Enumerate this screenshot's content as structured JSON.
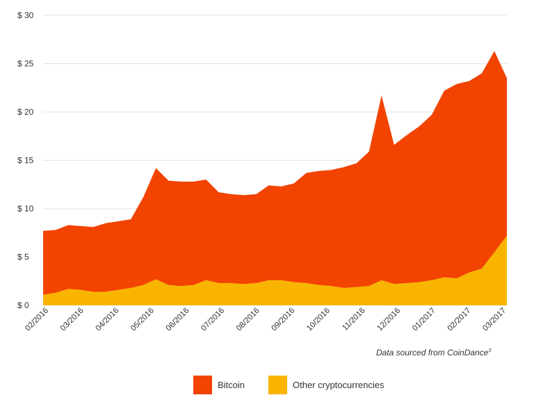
{
  "chart_data": {
    "type": "area",
    "stacked": true,
    "title": "",
    "xlabel": "",
    "ylabel": "",
    "ylim": [
      0,
      30
    ],
    "y_ticks": [
      "$ 0",
      "$ 5",
      "$ 10",
      "$ 15",
      "$ 20",
      "$ 25",
      "$ 30"
    ],
    "x_ticks": [
      "02/2016",
      "03/2016",
      "04/2016",
      "05/2016",
      "06/2016",
      "07/2016",
      "08/2016",
      "09/2016",
      "10/2016",
      "11/2016",
      "12/2016",
      "01/2017",
      "02/2017",
      "03/2017"
    ],
    "grid": true,
    "legend_position": "bottom-center",
    "x": [
      "02/2016",
      "02/2016",
      "03/2016",
      "03/2016",
      "04/2016",
      "04/2016",
      "05/2016",
      "05/2016",
      "05/2016",
      "06/2016",
      "06/2016",
      "06/2016",
      "06/2016",
      "07/2016",
      "07/2016",
      "07/2016",
      "08/2016",
      "08/2016",
      "09/2016",
      "09/2016",
      "10/2016",
      "10/2016",
      "11/2016",
      "11/2016",
      "12/2016",
      "12/2016",
      "12/2016",
      "12/2016",
      "01/2017",
      "01/2017",
      "01/2017",
      "02/2017",
      "02/2017",
      "02/2017",
      "03/2017",
      "03/2017",
      "03/2017",
      "03/2017"
    ],
    "series": [
      {
        "name": "Other cryptocurrencies",
        "color": "#F9B400",
        "values": [
          1.1,
          1.3,
          1.7,
          1.6,
          1.4,
          1.4,
          1.6,
          1.8,
          2.1,
          2.7,
          2.1,
          2.0,
          2.1,
          2.6,
          2.3,
          2.3,
          2.2,
          2.3,
          2.6,
          2.6,
          2.4,
          2.3,
          2.1,
          2.0,
          1.8,
          1.9,
          2.0,
          2.6,
          2.2,
          2.3,
          2.4,
          2.6,
          2.9,
          2.8,
          3.4,
          3.8,
          5.5,
          7.2
        ]
      },
      {
        "name": "Bitcoin",
        "color": "#F24300",
        "values": [
          6.6,
          6.5,
          6.6,
          6.6,
          6.7,
          7.1,
          7.1,
          7.1,
          9.1,
          11.5,
          10.8,
          10.8,
          10.7,
          10.4,
          9.4,
          9.2,
          9.2,
          9.2,
          9.8,
          9.7,
          10.2,
          11.4,
          11.8,
          12.0,
          12.5,
          12.8,
          13.9,
          19.1,
          14.4,
          15.3,
          16.1,
          17.1,
          19.3,
          20.1,
          19.8,
          20.2,
          20.8,
          16.3
        ]
      }
    ]
  },
  "source": {
    "text": "Data sourced from CoinDance",
    "superscript": "3"
  },
  "legend": [
    {
      "label": "Bitcoin",
      "color": "#F24300"
    },
    {
      "label": "Other cryptocurrencies",
      "color": "#F9B400"
    }
  ]
}
